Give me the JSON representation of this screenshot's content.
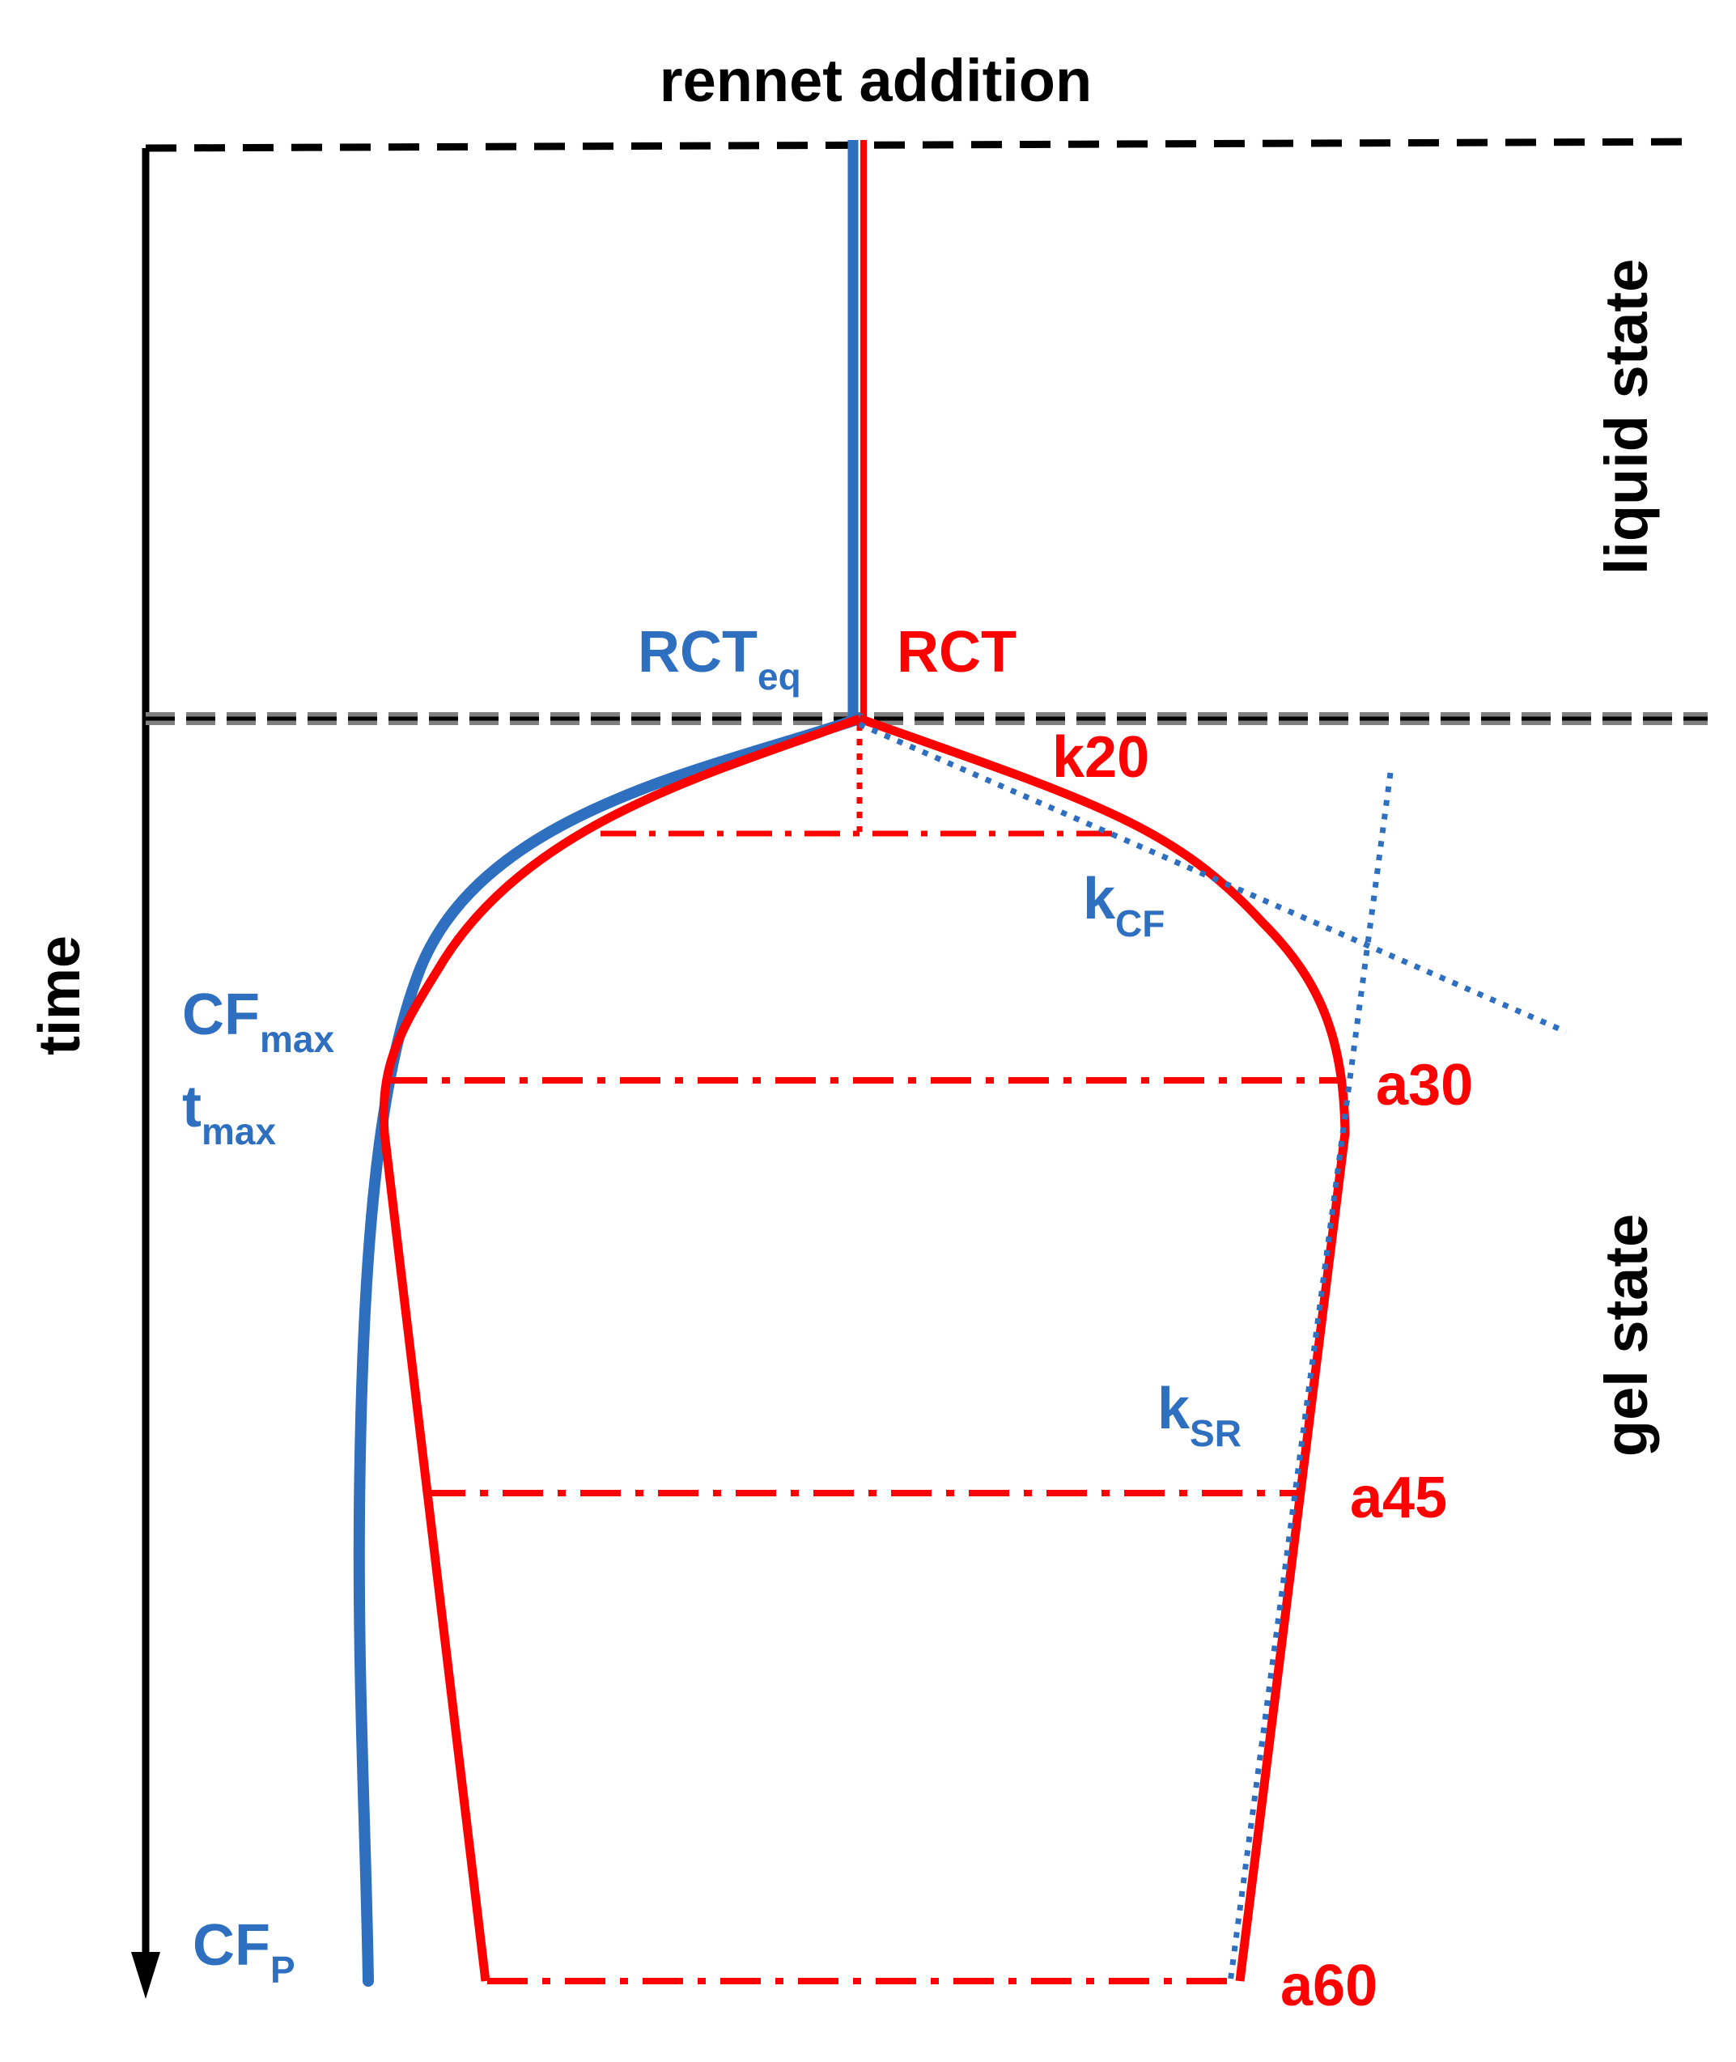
{
  "title": "rennet addition",
  "axis": {
    "label": "time"
  },
  "states": {
    "liquid": "liquid state",
    "gel": "gel state"
  },
  "labels": {
    "rct_eq": {
      "base": "RCT",
      "sub": "eq"
    },
    "rct": "RCT",
    "k20": "k20",
    "k_cf": {
      "base": "k",
      "sub": "CF"
    },
    "k_sr": {
      "base": "k",
      "sub": "SR"
    },
    "cf_max": {
      "base": "CF",
      "sub": "max"
    },
    "t_max": {
      "base": "t",
      "sub": "max"
    },
    "cf_p": {
      "base": "CF",
      "sub": "P"
    },
    "a30": "a30",
    "a45": "a45",
    "a60": "a60"
  },
  "colors": {
    "blue": "#2F6FBF",
    "red": "#FF0000",
    "black": "#000000",
    "gray": "#808080"
  }
}
